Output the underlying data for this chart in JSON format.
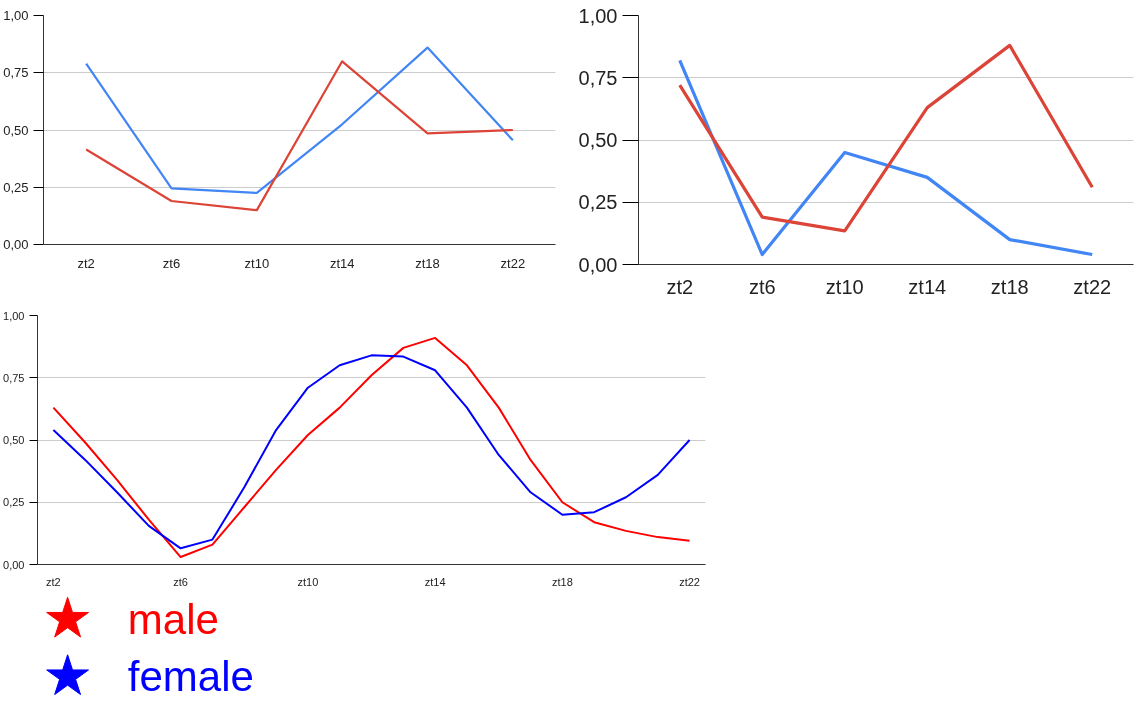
{
  "chart_data": [
    {
      "type": "line",
      "categories": [
        "zt2",
        "zt6",
        "zt10",
        "zt14",
        "zt18",
        "zt22"
      ],
      "ylim": [
        0,
        1
      ],
      "yticks": [
        {
          "value": 0,
          "label": "0,00"
        },
        {
          "value": 0.25,
          "label": "0,25"
        },
        {
          "value": 0.5,
          "label": "0,50"
        },
        {
          "value": 0.75,
          "label": "0,75"
        },
        {
          "value": 1,
          "label": "1,00"
        }
      ],
      "grid": "y",
      "series": [
        {
          "color": "#4285f4",
          "values": [
            0.79,
            0.245,
            0.225,
            0.525,
            0.86,
            0.455
          ]
        },
        {
          "color": "#db4437",
          "values": [
            0.415,
            0.19,
            0.15,
            0.8,
            0.485,
            0.5
          ]
        }
      ]
    },
    {
      "type": "line",
      "categories": [
        "zt2",
        "zt6",
        "zt10",
        "zt14",
        "zt18",
        "zt22"
      ],
      "ylim": [
        0,
        1
      ],
      "yticks": [
        {
          "value": 0,
          "label": "0,00"
        },
        {
          "value": 0.25,
          "label": "0,25"
        },
        {
          "value": 0.5,
          "label": "0,50"
        },
        {
          "value": 0.75,
          "label": "0,75"
        },
        {
          "value": 1,
          "label": "1,00"
        }
      ],
      "grid": "y",
      "series": [
        {
          "color": "#4285f4",
          "values": [
            0.82,
            0.04,
            0.45,
            0.35,
            0.1,
            0.04
          ]
        },
        {
          "color": "#db4437",
          "values": [
            0.72,
            0.19,
            0.135,
            0.63,
            0.88,
            0.31
          ]
        }
      ]
    },
    {
      "type": "line",
      "categories": [
        "zt2",
        null,
        null,
        null,
        "zt6",
        null,
        null,
        null,
        "zt10",
        null,
        null,
        null,
        "zt14",
        null,
        null,
        null,
        "zt18",
        null,
        null,
        null,
        "zt22"
      ],
      "ylim": [
        0,
        1
      ],
      "yticks": [
        {
          "value": 0,
          "label": "0,00"
        },
        {
          "value": 0.25,
          "label": "0,25"
        },
        {
          "value": 0.5,
          "label": "0,50"
        },
        {
          "value": 0.75,
          "label": "0,75"
        },
        {
          "value": 1,
          "label": "1,00"
        }
      ],
      "grid": "y",
      "legend": "bottom left",
      "series": [
        {
          "name": "male",
          "color": "#ff0000",
          "values": [
            0.63,
            0.49,
            0.34,
            0.18,
            0.03,
            0.08,
            0.23,
            0.38,
            0.52,
            0.63,
            0.76,
            0.87,
            0.91,
            0.8,
            0.63,
            0.42,
            0.25,
            0.17,
            0.135,
            0.11,
            0.095
          ]
        },
        {
          "name": "female",
          "color": "#0000ff",
          "values": [
            0.54,
            0.42,
            0.29,
            0.155,
            0.065,
            0.1,
            0.31,
            0.54,
            0.71,
            0.8,
            0.84,
            0.835,
            0.78,
            0.63,
            0.44,
            0.29,
            0.2,
            0.21,
            0.27,
            0.36,
            0.5
          ]
        }
      ]
    }
  ]
}
